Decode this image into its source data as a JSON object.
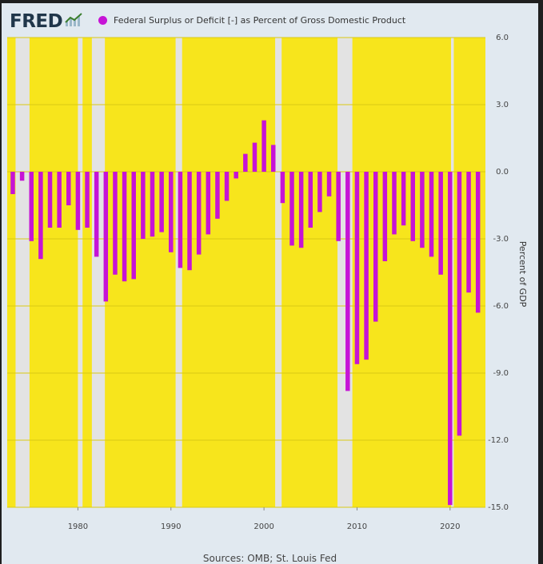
{
  "header": {
    "logo_text": "FRED",
    "logo_icon": "chart-line-icon"
  },
  "footer": {
    "source": "Sources: OMB; St. Louis Fed"
  },
  "colors": {
    "bar": "#c614d6",
    "recession_fill": "#e3e3e3",
    "background_fill": "#f7e51c",
    "panel": "#e1e9f0",
    "logo": "#20364a"
  },
  "chart_data": {
    "type": "bar",
    "title": "",
    "xlabel": "",
    "ylabel": "Percent of GDP",
    "ylim": [
      -15,
      6
    ],
    "yticks": [
      "6.0",
      "3.0",
      "0.0",
      "-3.0",
      "-6.0",
      "-9.0",
      "-12.0",
      "-15.0"
    ],
    "xticks": [
      "1980",
      "1990",
      "2000",
      "2010",
      "2020"
    ],
    "xlim": [
      1972.4,
      2023.8
    ],
    "grid": true,
    "legend_position": "top",
    "series": [
      {
        "name": "Federal Surplus or Deficit [-] as Percent of Gross Domestic Product",
        "x": [
          1973,
          1974,
          1975,
          1976,
          1977,
          1978,
          1979,
          1980,
          1981,
          1982,
          1983,
          1984,
          1985,
          1986,
          1987,
          1988,
          1989,
          1990,
          1991,
          1992,
          1993,
          1994,
          1995,
          1996,
          1997,
          1998,
          1999,
          2000,
          2001,
          2002,
          2003,
          2004,
          2005,
          2006,
          2007,
          2008,
          2009,
          2010,
          2011,
          2012,
          2013,
          2014,
          2015,
          2016,
          2017,
          2018,
          2019,
          2020,
          2021,
          2022,
          2023
        ],
        "values": [
          -1.0,
          -0.4,
          -3.1,
          -3.9,
          -2.5,
          -2.5,
          -1.5,
          -2.6,
          -2.5,
          -3.8,
          -5.8,
          -4.6,
          -4.9,
          -4.8,
          -3.0,
          -2.9,
          -2.7,
          -3.6,
          -4.3,
          -4.4,
          -3.7,
          -2.8,
          -2.1,
          -1.3,
          -0.3,
          0.8,
          1.3,
          2.3,
          1.2,
          -1.4,
          -3.3,
          -3.4,
          -2.5,
          -1.8,
          -1.1,
          -3.1,
          -9.8,
          -8.6,
          -8.4,
          -6.7,
          -4.0,
          -2.8,
          -2.4,
          -3.1,
          -3.4,
          -3.8,
          -4.6,
          -14.9,
          -11.8,
          -5.4,
          -6.3
        ]
      }
    ],
    "non_highlighted_periods": [
      [
        1973.3,
        1974.8
      ],
      [
        1980.0,
        1980.5
      ],
      [
        1981.5,
        1982.9
      ],
      [
        1990.5,
        1991.2
      ],
      [
        2001.2,
        2001.9
      ],
      [
        2007.9,
        2009.5
      ],
      [
        2020.1,
        2020.4
      ]
    ]
  }
}
